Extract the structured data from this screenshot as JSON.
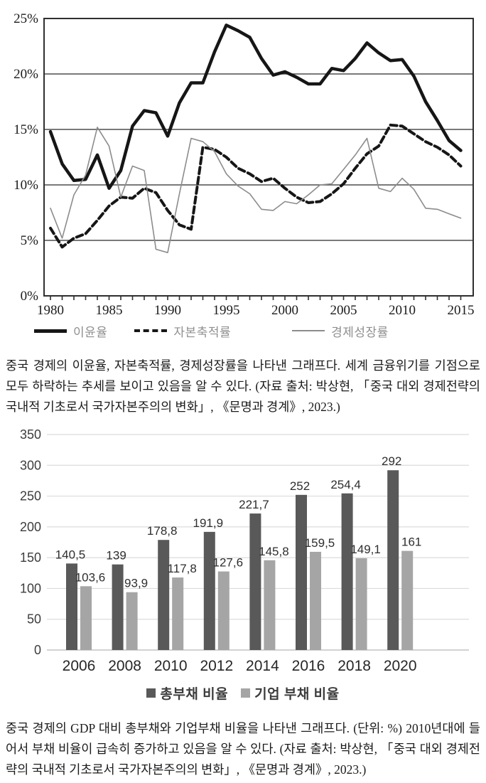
{
  "page": {
    "background": "#ffffff"
  },
  "chart_data": [
    {
      "type": "line",
      "title": "",
      "xlabel": "",
      "ylabel": "",
      "x": [
        1980,
        1981,
        1982,
        1983,
        1984,
        1985,
        1986,
        1987,
        1988,
        1989,
        1990,
        1991,
        1992,
        1993,
        1994,
        1995,
        1996,
        1997,
        1998,
        1999,
        2000,
        2001,
        2002,
        2003,
        2004,
        2005,
        2006,
        2007,
        2008,
        2009,
        2010,
        2011,
        2012,
        2013,
        2014,
        2015
      ],
      "xticks": [
        1980,
        1985,
        1990,
        1995,
        2000,
        2005,
        2010,
        2015
      ],
      "ylim": [
        0,
        25
      ],
      "ytick_values": [
        0,
        5,
        10,
        15,
        20,
        25
      ],
      "ytick_labels": [
        "0%",
        "5%",
        "10%",
        "15%",
        "20%",
        "25%"
      ],
      "grid_values": [
        5,
        10,
        15,
        20
      ],
      "legend_position": "bottom",
      "colors": {
        "frame": "#2f2f2f",
        "grid": "#4f4f4f"
      },
      "series": [
        {
          "name": "이윤율",
          "key": "profit-rate",
          "color": "#161616",
          "line_style": "thick-solid",
          "values": [
            14.8,
            11.9,
            10.4,
            10.5,
            12.7,
            9.7,
            11.3,
            15.3,
            16.7,
            16.5,
            14.4,
            17.4,
            19.2,
            19.2,
            22.0,
            24.4,
            23.9,
            23.3,
            21.4,
            19.9,
            20.2,
            19.7,
            19.1,
            19.1,
            20.5,
            20.3,
            21.4,
            22.8,
            21.9,
            21.2,
            21.3,
            19.8,
            17.5,
            15.8,
            14.0,
            13.1
          ]
        },
        {
          "name": "자본축적률",
          "key": "capital-accumulation-rate",
          "color": "#161616",
          "line_style": "dashed",
          "values": [
            6.1,
            4.4,
            5.2,
            5.6,
            6.8,
            8.1,
            8.9,
            8.8,
            9.7,
            9.3,
            7.7,
            6.4,
            6.0,
            13.4,
            13.2,
            12.5,
            11.5,
            11.0,
            10.3,
            10.6,
            9.7,
            8.9,
            8.4,
            8.5,
            9.2,
            10.1,
            11.5,
            12.8,
            13.5,
            15.4,
            15.3,
            14.6,
            13.9,
            13.4,
            12.7,
            11.7
          ]
        },
        {
          "name": "경제성장률",
          "key": "economic-growth-rate",
          "color": "#8c8c8c",
          "line_style": "thin-solid",
          "values": [
            7.9,
            5.2,
            9.1,
            10.9,
            15.2,
            13.5,
            8.9,
            11.7,
            11.3,
            4.2,
            3.9,
            9.2,
            14.2,
            13.9,
            13.0,
            11.0,
            9.9,
            9.2,
            7.8,
            7.7,
            8.5,
            8.3,
            9.1,
            10.0,
            10.1,
            11.4,
            12.7,
            14.2,
            9.7,
            9.4,
            10.6,
            9.6,
            7.9,
            7.8,
            7.4,
            7.0
          ]
        }
      ]
    },
    {
      "type": "bar",
      "title": "",
      "xlabel": "",
      "ylabel": "",
      "categories": [
        "2006",
        "2008",
        "2010",
        "2012",
        "2014",
        "2016",
        "2018",
        "2020"
      ],
      "ylim": [
        0,
        350
      ],
      "yticks": [
        0,
        50,
        100,
        150,
        200,
        250,
        300,
        350
      ],
      "grid": true,
      "legend_position": "bottom",
      "colors": {
        "grid": "#dcdcdc",
        "baseline": "#c4c4c4",
        "label": "#2e2e2e"
      },
      "series": [
        {
          "name": "총부채 비율",
          "key": "total-debt-ratio",
          "color": "#595959",
          "values": [
            140.5,
            139,
            178.8,
            191.9,
            221.7,
            252,
            254.4,
            292
          ],
          "value_labels": [
            "140,5",
            "139",
            "178,8",
            "191,9",
            "221,7",
            "252",
            "254,4",
            "292"
          ]
        },
        {
          "name": "기업 부채 비율",
          "key": "corporate-debt-ratio",
          "color": "#a5a5a5",
          "values": [
            103.6,
            93.9,
            117.8,
            127.6,
            145.8,
            159.5,
            149.1,
            161
          ],
          "value_labels": [
            "103,6",
            "93,9",
            "117,8",
            "127,6",
            "145,8",
            "159,5",
            "149,1",
            "161"
          ]
        }
      ]
    }
  ],
  "captions": {
    "line_chart": "중국 경제의 이윤율, 자본축적률, 경제성장률을 나타낸 그래프다. 세계 금융위기를 기점으로 모두 하락하는 추세를 보이고 있음을 알 수 있다. (자료 출처: 박상현, 「중국 대외 경제전략의 국내적 기초로서 국가자본주의의 변화」, 《문명과 경계》, 2023.)",
    "bar_chart": "중국 경제의 GDP 대비 총부채와 기업부채 비율을 나타낸 그래프다. (단위: %) 2010년대에 들어서 부채 비율이 급속히 증가하고 있음을 알 수 있다. (자료 출처: 박상현, 「중국 대외 경제전략의 국내적 기초로서 국가자본주의의 변화」, 《문명과 경계》, 2023.)"
  }
}
